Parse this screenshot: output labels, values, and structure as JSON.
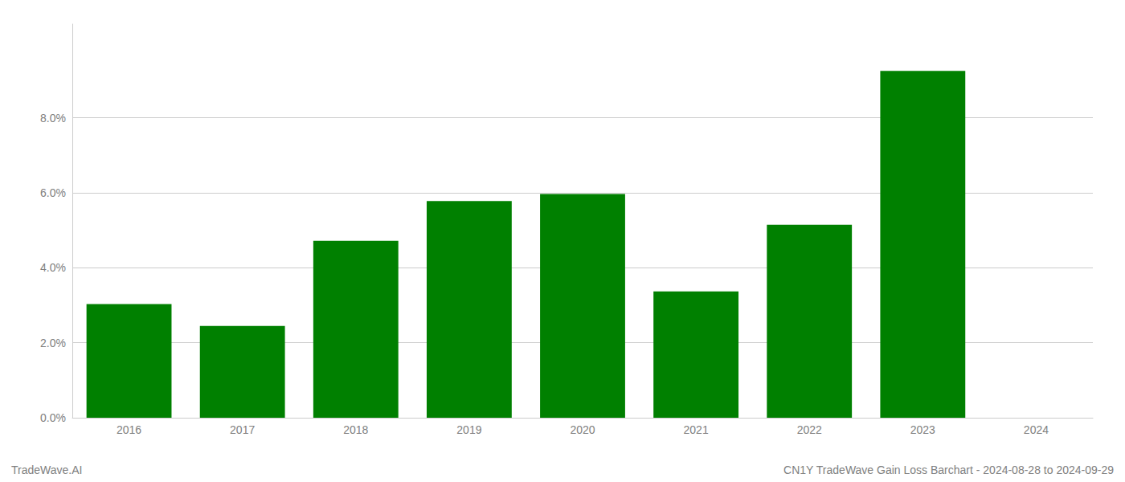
{
  "chart_data": {
    "type": "bar",
    "categories": [
      "2016",
      "2017",
      "2018",
      "2019",
      "2020",
      "2021",
      "2022",
      "2023",
      "2024"
    ],
    "values": [
      0.0303,
      0.0245,
      0.0472,
      0.0578,
      0.0597,
      0.0337,
      0.0515,
      0.0925,
      null
    ],
    "color": "#008000",
    "ylim": [
      0,
      0.105
    ],
    "yticks": [
      {
        "value": 0.0,
        "label": "0.0%"
      },
      {
        "value": 0.02,
        "label": "2.0%"
      },
      {
        "value": 0.04,
        "label": "4.0%"
      },
      {
        "value": 0.06,
        "label": "6.0%"
      },
      {
        "value": 0.08,
        "label": "8.0%"
      }
    ],
    "grid": true,
    "annotations": [
      "TradeWave.AI",
      "CN1Y TradeWave Gain Loss Barchart - 2024-08-28 to 2024-09-29"
    ]
  }
}
